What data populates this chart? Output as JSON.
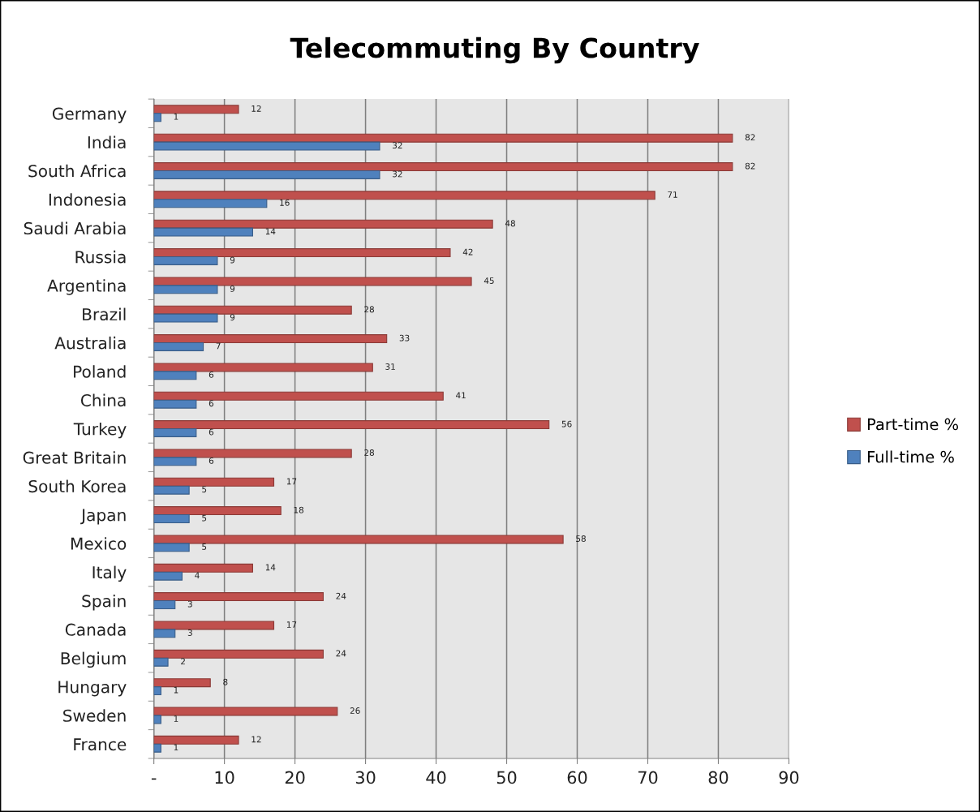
{
  "chart_data": {
    "type": "bar",
    "orientation": "horizontal",
    "title": "Telecommuting By Country",
    "categories": [
      "Germany",
      "India",
      "South Africa",
      "Indonesia",
      "Saudi Arabia",
      "Russia",
      "Argentina",
      "Brazil",
      "Australia",
      "Poland",
      "China",
      "Turkey",
      "Great Britain",
      "South Korea",
      "Japan",
      "Mexico",
      "Italy",
      "Spain",
      "Canada",
      "Belgium",
      "Hungary",
      "Sweden",
      "France"
    ],
    "series": [
      {
        "name": "Part-time %",
        "color": "#c0504d",
        "values": [
          12,
          82,
          82,
          71,
          48,
          42,
          45,
          28,
          33,
          31,
          41,
          56,
          28,
          17,
          18,
          58,
          14,
          24,
          17,
          24,
          8,
          26,
          12
        ]
      },
      {
        "name": "Full-time %",
        "color": "#4f81bd",
        "values": [
          1,
          32,
          32,
          16,
          14,
          9,
          9,
          9,
          7,
          6,
          6,
          6,
          6,
          5,
          5,
          5,
          4,
          3,
          3,
          2,
          1,
          1,
          1
        ]
      }
    ],
    "xlim": [
      0,
      90
    ],
    "xticks": [
      {
        "value": 0,
        "label": "-"
      },
      10,
      20,
      30,
      40,
      50,
      60,
      70,
      80,
      90
    ],
    "grid": "x",
    "legend": "right",
    "data_labels": true
  }
}
